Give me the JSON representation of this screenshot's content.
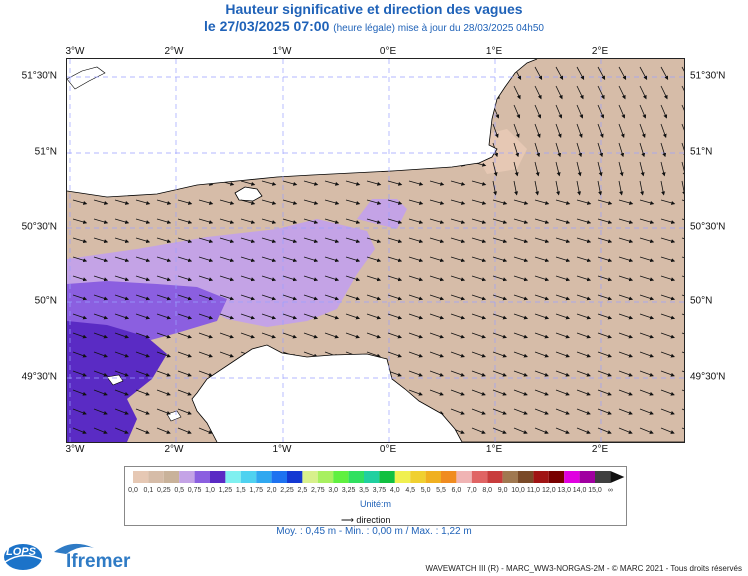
{
  "header": {
    "title": "Hauteur significative et direction des vagues",
    "date_line": "le 27/03/2025 07:00",
    "update_line": "(heure légale) mise à jour du 28/03/2025 04h50"
  },
  "map": {
    "lon_labels": [
      "3°W",
      "2°W",
      "1°W",
      "0°E",
      "1°E",
      "2°E"
    ],
    "lat_labels": [
      "51°30'N",
      "51°N",
      "50°30'N",
      "50°N",
      "49°30'N"
    ],
    "extent": {
      "lon": [
        -3.0,
        2.75
      ],
      "lat": [
        49.1,
        51.6
      ]
    },
    "land_color": "#ffffff",
    "arrow_direction": "from west-northwest toward east-southeast"
  },
  "legend": {
    "scale_labels": [
      "0,0",
      "0,1",
      "0,25",
      "0,5",
      "0,75",
      "1,0",
      "1,25",
      "1,5",
      "1,75",
      "2,0",
      "2,25",
      "2,5",
      "2,75",
      "3,0",
      "3,25",
      "3,5",
      "3,75",
      "4,0",
      "4,5",
      "5,0",
      "5,5",
      "6,0",
      "7,0",
      "8,0",
      "9,0",
      "10,0",
      "11,0",
      "12,0",
      "13,0",
      "14,0",
      "15,0",
      "∞"
    ],
    "colors": [
      "#e6c8b4",
      "#d6bca8",
      "#c9b29a",
      "#c4a3e6",
      "#8b5fe0",
      "#5a2bc4",
      "#7ff0f0",
      "#4fd2f0",
      "#30a8f0",
      "#1e72f0",
      "#1438d2",
      "#d8f08c",
      "#a8f060",
      "#60f040",
      "#30e060",
      "#20d0a0",
      "#10c040",
      "#f0f050",
      "#f0d030",
      "#f0b020",
      "#f08c20",
      "#f0b4b4",
      "#e06464",
      "#c83c3c",
      "#a07850",
      "#7a4a28",
      "#a01414",
      "#780000",
      "#e000e0",
      "#a000a0",
      "#404040"
    ],
    "unit": "Unité:m",
    "direction_label": "direction"
  },
  "stats": {
    "text": "Moy. : 0,45 m  -  Min. : 0,00 m / Max. : 1,22 m"
  },
  "footer": {
    "credit": "WAVEWATCH III (R) - MARC_WW3-NORGAS-2M - © MARC 2021 - Tous droits réservés",
    "logo_lops": "LOPS",
    "logo_ifremer": "Ifremer"
  },
  "palette": {
    "land": "#ffffff",
    "low": "#d6bca8",
    "mid": "#c4a3e6",
    "high": "#8b5fe0",
    "highest": "#5a2bc4",
    "title": "#1f62b8"
  }
}
